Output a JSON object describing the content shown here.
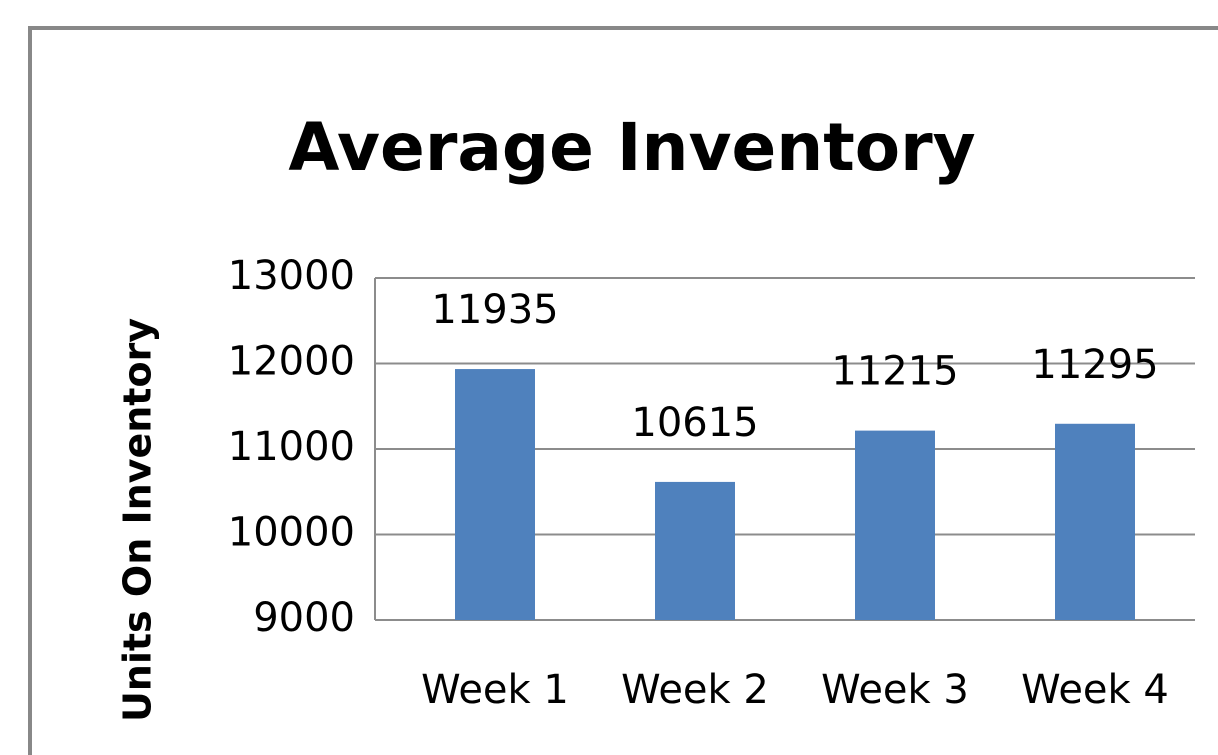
{
  "chart_data": {
    "type": "bar",
    "title": "Average Inventory",
    "y_label": "Units On Inventory",
    "categories": [
      "Week 1",
      "Week 2",
      "Week 3",
      "Week 4"
    ],
    "values": [
      11935,
      10615,
      11215,
      11295
    ],
    "color": "#4f81bd",
    "ylim": [
      9000,
      13000
    ],
    "yticks": [
      9000,
      10000,
      11000,
      12000,
      13000
    ],
    "grid": true
  }
}
